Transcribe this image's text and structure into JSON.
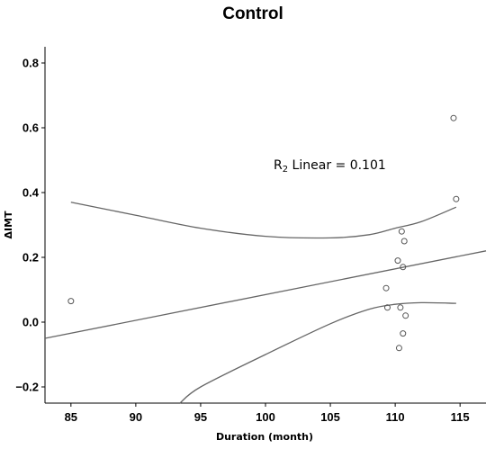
{
  "chart_data": {
    "type": "scatter",
    "title": "Control",
    "xlabel": "Duration (month)",
    "ylabel": "ΔIMT",
    "xlim": [
      83,
      117
    ],
    "ylim": [
      -0.25,
      0.85
    ],
    "xticks": [
      85,
      90,
      95,
      100,
      105,
      110,
      115
    ],
    "yticks": [
      -0.2,
      0.0,
      0.2,
      0.4,
      0.6,
      0.8
    ],
    "xtick_labels": [
      "85",
      "90",
      "95",
      "100",
      "105",
      "110",
      "115"
    ],
    "ytick_labels": [
      "−0.2",
      "0.0",
      "0.2",
      "0.4",
      "0.6",
      "0.8"
    ],
    "grid": false,
    "annotation": {
      "prefix": "R",
      "subscript": "2",
      "text": " Linear = 0.101"
    },
    "points": [
      {
        "x": 85.0,
        "y": 0.065
      },
      {
        "x": 109.3,
        "y": 0.105
      },
      {
        "x": 109.4,
        "y": 0.045
      },
      {
        "x": 110.2,
        "y": 0.19
      },
      {
        "x": 110.3,
        "y": -0.08
      },
      {
        "x": 110.4,
        "y": 0.045
      },
      {
        "x": 110.5,
        "y": 0.28
      },
      {
        "x": 110.6,
        "y": 0.17
      },
      {
        "x": 110.6,
        "y": -0.035
      },
      {
        "x": 110.7,
        "y": 0.25
      },
      {
        "x": 110.8,
        "y": 0.02
      },
      {
        "x": 114.5,
        "y": 0.63
      },
      {
        "x": 114.7,
        "y": 0.38
      }
    ],
    "fit_line": {
      "x": [
        83,
        117
      ],
      "y": [
        -0.05,
        0.22
      ]
    },
    "confidence_upper": {
      "x": [
        85,
        90,
        95,
        100,
        105,
        108,
        110,
        112,
        114.7
      ],
      "y": [
        0.37,
        0.33,
        0.29,
        0.265,
        0.26,
        0.27,
        0.29,
        0.31,
        0.355
      ]
    },
    "confidence_lower": {
      "x": [
        93.4,
        95,
        100,
        105,
        108,
        110,
        112,
        114.7
      ],
      "y": [
        -0.25,
        -0.2,
        -0.1,
        -0.005,
        0.04,
        0.055,
        0.06,
        0.058
      ]
    },
    "colors": {
      "points": "#555555",
      "lines": "#666666",
      "axis": "#000000"
    }
  }
}
